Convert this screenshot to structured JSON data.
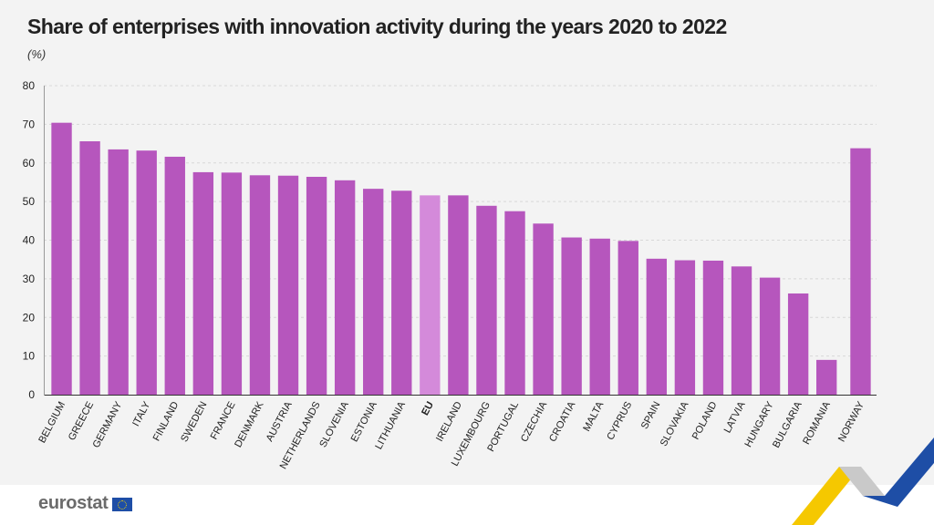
{
  "title": "Share of enterprises with innovation activity during the years 2020 to 2022",
  "unit": "(%)",
  "footer": {
    "logo_text": "eurostat"
  },
  "colors": {
    "bar": "#b656bd",
    "bar_highlight": "#d48ada",
    "grid": "#d8d8d8",
    "axis_text": "#222222"
  },
  "chart_data": {
    "type": "bar",
    "title": "Share of enterprises with innovation activity during the years 2020 to 2022",
    "ylabel": "(%)",
    "xlabel": "",
    "ylim": [
      0,
      80
    ],
    "yticks": [
      0,
      10,
      20,
      30,
      40,
      50,
      60,
      70,
      80
    ],
    "grid": true,
    "highlight": "EU",
    "categories": [
      "BELGIUM",
      "GREECE",
      "GERMANY",
      "ITALY",
      "FINLAND",
      "SWEDEN",
      "FRANCE",
      "DENMARK",
      "AUSTRIA",
      "NETHERLANDS",
      "SLOVENIA",
      "ESTONIA",
      "LITHUANIA",
      "EU",
      "IRELAND",
      "LUXEMBOURG",
      "PORTUGAL",
      "CZECHIA",
      "CROATIA",
      "MALTA",
      "CYPRUS",
      "SPAIN",
      "SLOVAKIA",
      "POLAND",
      "LATVIA",
      "HUNGARY",
      "BULGARIA",
      "ROMANIA",
      "NORWAY"
    ],
    "values": [
      70.4,
      65.6,
      63.5,
      63.2,
      61.6,
      57.6,
      57.5,
      56.8,
      56.7,
      56.4,
      55.5,
      53.3,
      52.8,
      51.6,
      51.6,
      48.9,
      47.5,
      44.3,
      40.7,
      40.4,
      39.8,
      35.2,
      34.8,
      34.7,
      33.2,
      30.3,
      26.2,
      9.0,
      63.8
    ],
    "gap_before": [
      "NORWAY"
    ]
  }
}
